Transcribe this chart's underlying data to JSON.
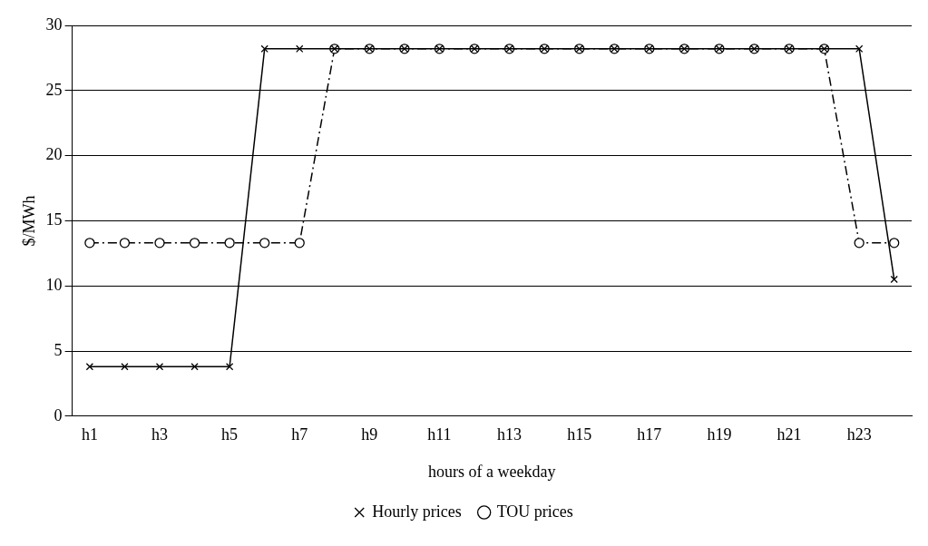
{
  "chart_data": {
    "type": "line",
    "xlabel": "hours of a weekday",
    "ylabel": "$/MWh",
    "categories": [
      "h1",
      null,
      "h3",
      null,
      "h5",
      null,
      "h7",
      null,
      "h9",
      null,
      "h11",
      null,
      "h13",
      null,
      "h15",
      null,
      "h17",
      null,
      "h19",
      null,
      "h21",
      null,
      "h23",
      null
    ],
    "series": [
      {
        "name": "Hourly prices",
        "color": "#000000",
        "marker": "cross",
        "line_style": "solid",
        "values": [
          3.8,
          3.8,
          3.8,
          3.8,
          3.8,
          28.2,
          28.2,
          28.2,
          28.2,
          28.2,
          28.2,
          28.2,
          28.2,
          28.2,
          28.2,
          28.2,
          28.2,
          28.2,
          28.2,
          28.2,
          28.2,
          28.2,
          28.2,
          10.5
        ]
      },
      {
        "name": "TOU prices",
        "color": "#000000",
        "marker": "circle",
        "line_style": "dashdot",
        "values": [
          13.3,
          13.3,
          13.3,
          13.3,
          13.3,
          13.3,
          13.3,
          28.2,
          28.2,
          28.2,
          28.2,
          28.2,
          28.2,
          28.2,
          28.2,
          28.2,
          28.2,
          28.2,
          28.2,
          28.2,
          28.2,
          28.2,
          13.3,
          13.3
        ]
      }
    ],
    "ylim": [
      0,
      30
    ],
    "yticks": [
      0,
      5,
      10,
      15,
      20,
      25,
      30
    ],
    "grid": "y",
    "legend": "bottom"
  }
}
